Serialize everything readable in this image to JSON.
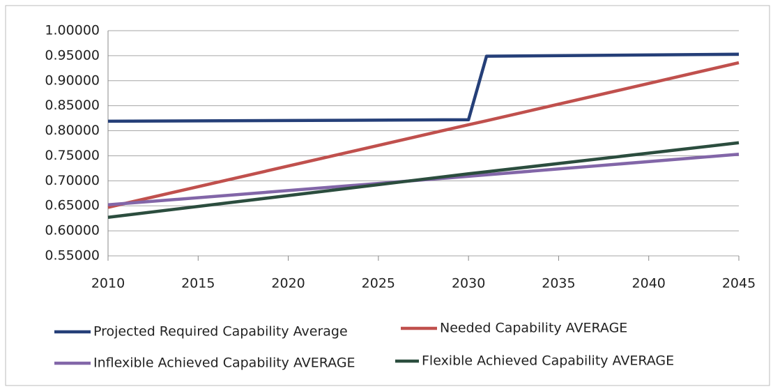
{
  "chart_data": {
    "type": "line",
    "x": [
      2010,
      2030,
      2031,
      2045
    ],
    "xlim": [
      2010,
      2045
    ],
    "xticks": [
      2010,
      2015,
      2020,
      2025,
      2030,
      2035,
      2040,
      2045
    ],
    "ylim": [
      0.55,
      1.0
    ],
    "yticks": [
      {
        "value": 0.55,
        "label": "0.55000"
      },
      {
        "value": 0.6,
        "label": "0.60000"
      },
      {
        "value": 0.65,
        "label": "0.65000"
      },
      {
        "value": 0.7,
        "label": "0.70000"
      },
      {
        "value": 0.75,
        "label": "0.75000"
      },
      {
        "value": 0.8,
        "label": "0.80000"
      },
      {
        "value": 0.85,
        "label": "0.85000"
      },
      {
        "value": 0.9,
        "label": "0.90000"
      },
      {
        "value": 0.95,
        "label": "0.95000"
      },
      {
        "value": 1.0,
        "label": "1.00000"
      }
    ],
    "grid": true,
    "legend": "bottom",
    "series": [
      {
        "name": "Projected Required Capability Average",
        "color": "#253f78",
        "values": [
          0.819,
          0.822,
          0.949,
          0.953
        ]
      },
      {
        "name": "Needed Capability AVERAGE",
        "color": "#c0504d",
        "values": [
          0.647,
          0.812,
          0.82,
          0.936
        ]
      },
      {
        "name": "Inflexible Achieved Capability AVERAGE",
        "color": "#8266a8",
        "values": [
          0.652,
          0.709,
          0.712,
          0.753
        ]
      },
      {
        "name": "Flexible Achieved Capability AVERAGE",
        "color": "#2b4d3e",
        "values": [
          0.627,
          0.714,
          0.718,
          0.776
        ]
      }
    ]
  }
}
